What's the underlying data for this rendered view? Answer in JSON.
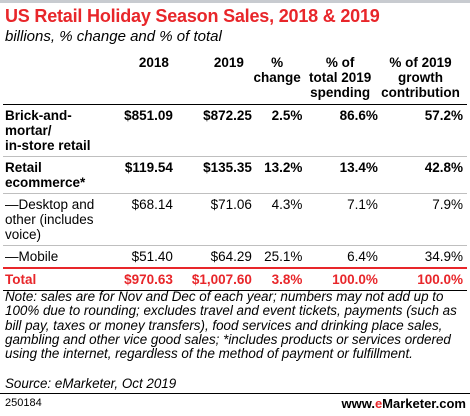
{
  "chart_data": {
    "type": "table",
    "title": "US Retail Holiday Season Sales, 2018 & 2019",
    "subtitle": "billions, % change and % of total",
    "columns": [
      "",
      "2018",
      "2019",
      "% change",
      "% of total 2019 spending",
      "% of 2019 growth contribution"
    ],
    "rows": [
      {
        "label": "Brick-and-mortar/ in-store retail",
        "values": [
          "$851.09",
          "$872.25",
          "2.5%",
          "86.6%",
          "57.2%"
        ],
        "style": "bold"
      },
      {
        "label": "Retail ecommerce*",
        "values": [
          "$119.54",
          "$135.35",
          "13.2%",
          "13.4%",
          "42.8%"
        ],
        "style": "bold"
      },
      {
        "label": "—Desktop and other (includes voice)",
        "values": [
          "$68.14",
          "$71.06",
          "4.3%",
          "7.1%",
          "7.9%"
        ],
        "style": "normal"
      },
      {
        "label": "—Mobile",
        "values": [
          "$51.40",
          "$64.29",
          "25.1%",
          "6.4%",
          "34.9%"
        ],
        "style": "normal"
      },
      {
        "label": "Total",
        "values": [
          "$970.63",
          "$1,007.60",
          "3.8%",
          "100.0%",
          "100.0%"
        ],
        "style": "total"
      }
    ]
  },
  "header_lines": {
    "h3": [
      "%",
      "change"
    ],
    "h4": [
      "% of",
      "total 2019",
      "spending"
    ],
    "h5": [
      "% of 2019",
      "growth",
      "contribution"
    ]
  },
  "row_label_lines": {
    "r0": [
      "Brick-and-",
      "mortar/",
      "in-store retail"
    ],
    "r1": [
      "Retail",
      "ecommerce*"
    ],
    "r2": [
      "—Desktop and",
      "other (includes",
      "voice)"
    ],
    "r3": [
      "—Mobile"
    ],
    "r4": [
      "Total"
    ]
  },
  "note": "Note: sales are for Nov and Dec of each year; numbers may not add up to 100% due to rounding; excludes travel and event tickets, payments (such as bill pay, taxes or money transfers), food services and drinking place sales, gambling and other vice good sales; *includes products or services ordered using the internet, regardless of the method of payment or fulfillment.",
  "source": "Source: eMarketer, Oct 2019",
  "chart_id": "250184",
  "logo": {
    "prefix": "www.",
    "e": "e",
    "rest": "Marketer.com"
  },
  "colors": {
    "accent": "#e8262a",
    "rule": "#bfbfbf"
  }
}
